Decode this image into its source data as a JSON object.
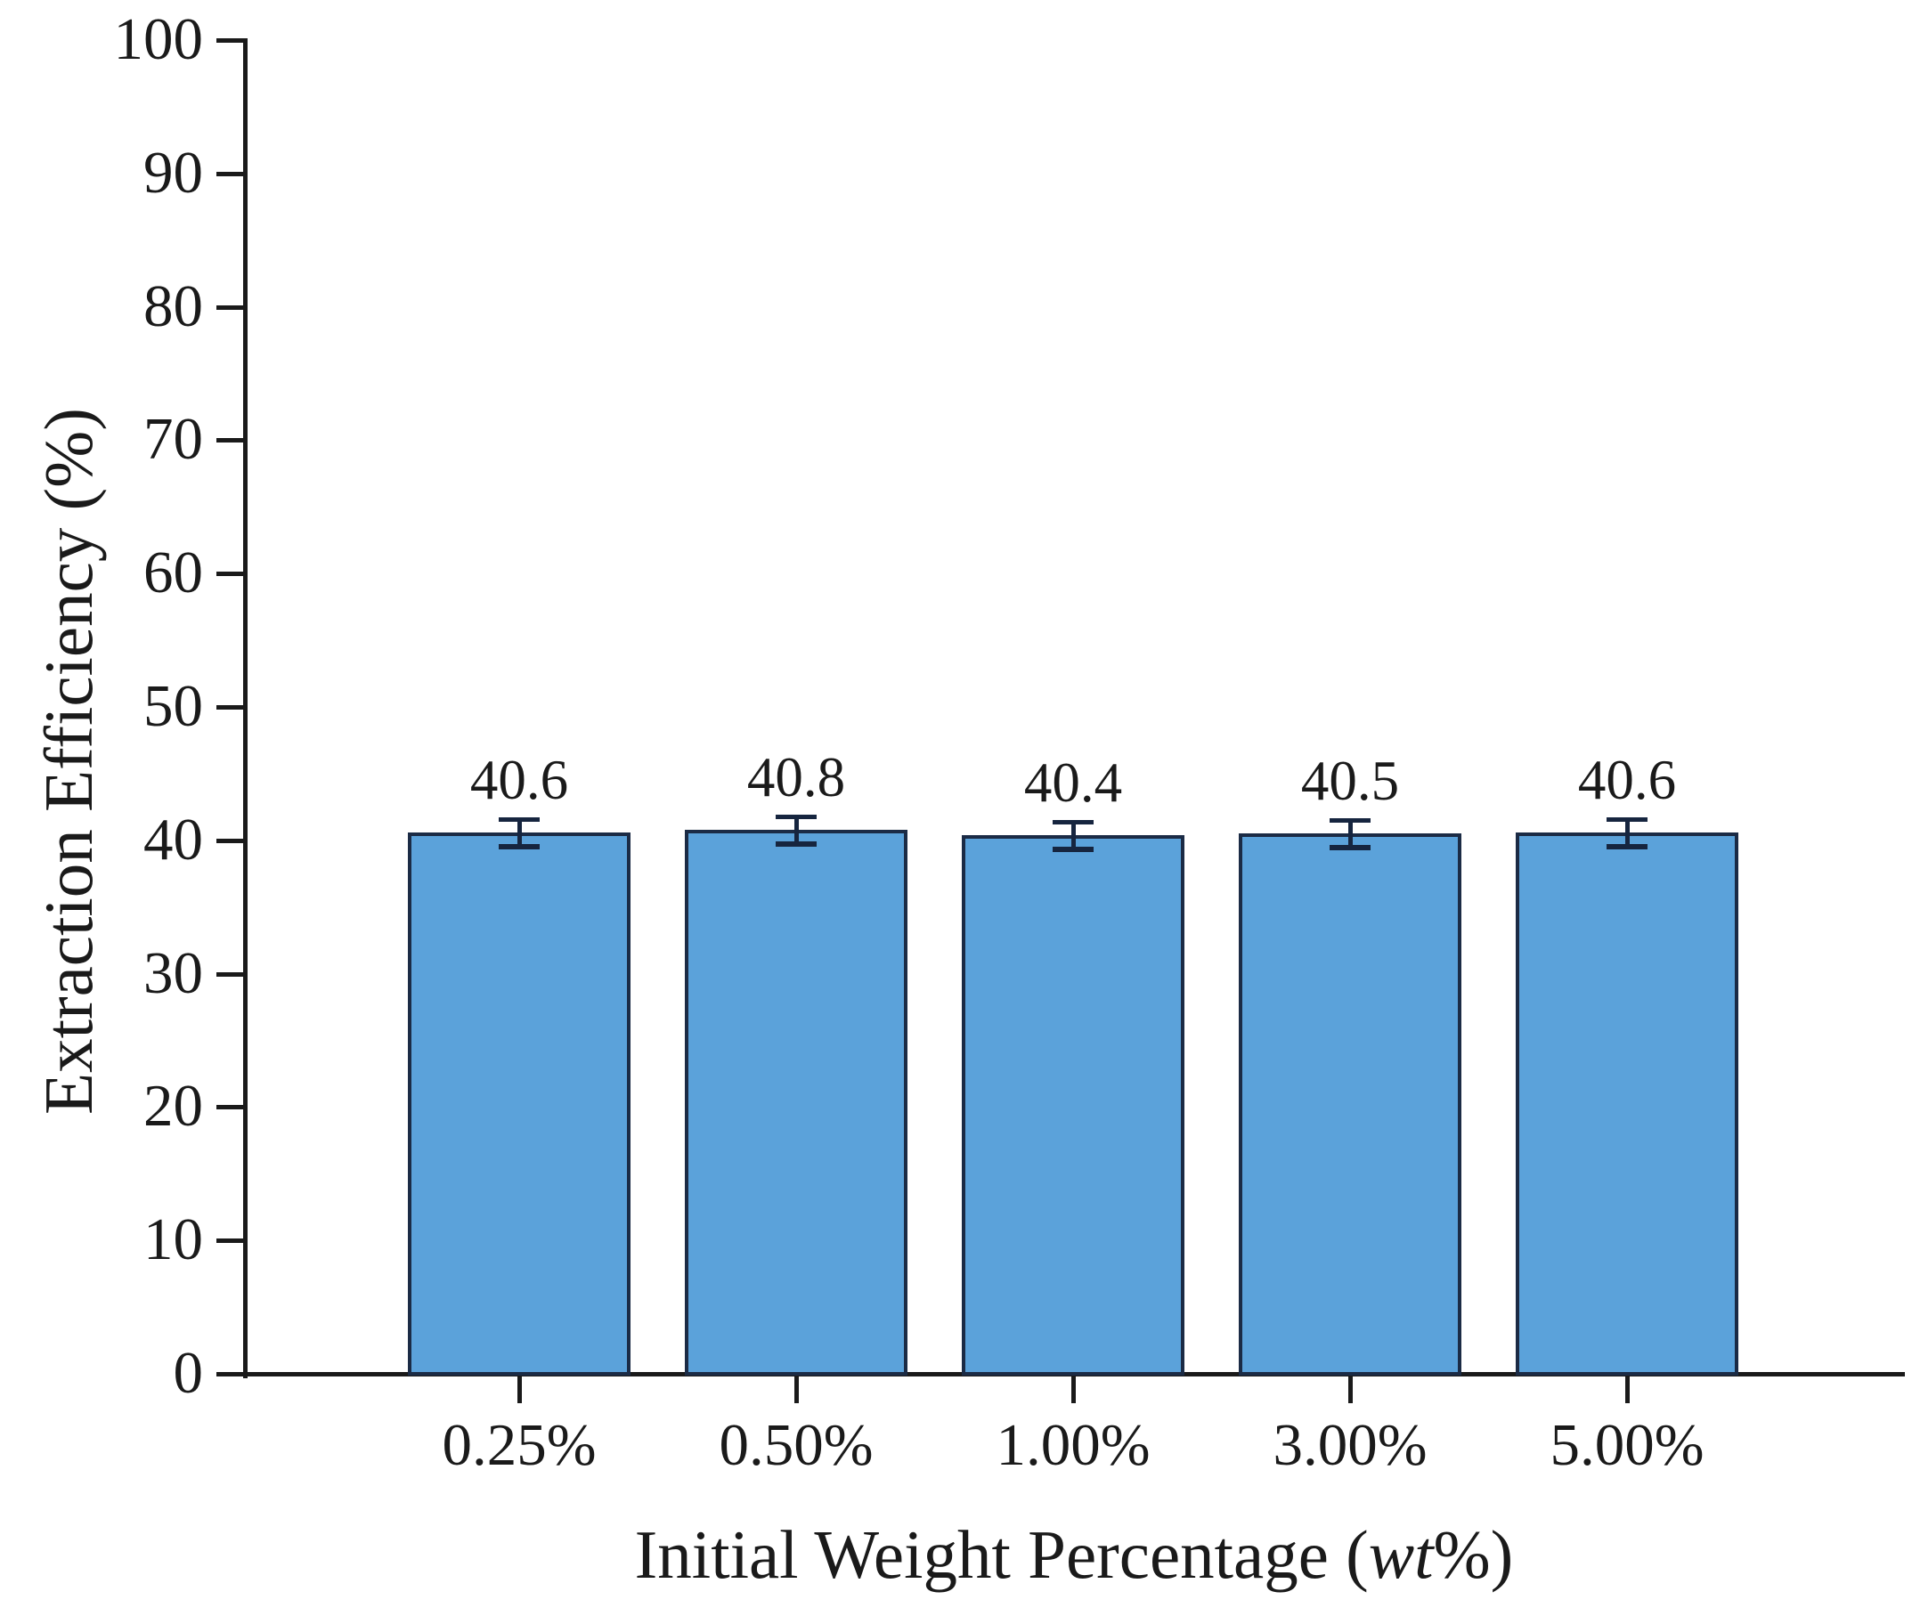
{
  "chart_data": {
    "type": "bar",
    "title": "",
    "categories": [
      "0.25%",
      "0.50%",
      "1.00%",
      "3.00%",
      "5.00%"
    ],
    "values": [
      40.6,
      40.8,
      40.4,
      40.5,
      40.6
    ],
    "value_labels": [
      "40.6",
      "40.8",
      "40.4",
      "40.5",
      "40.6"
    ],
    "errors": [
      1.0,
      1.0,
      1.0,
      1.0,
      1.0
    ],
    "ylabel": "Extraction Efficiency (%)",
    "xlabel_parts": {
      "pre": "Initial Weight Percentage (",
      "italic": "wt",
      "post": "%)"
    },
    "ylim": [
      0,
      100
    ],
    "yticks": [
      0,
      10,
      20,
      30,
      40,
      50,
      60,
      70,
      80,
      90,
      100
    ],
    "grid": "off",
    "legend": "none",
    "colors": {
      "bar_fill": "#5BA2DA",
      "bar_border": "#1B2B45",
      "error_bar": "#16253F",
      "axis": "#1A1A1A"
    }
  }
}
